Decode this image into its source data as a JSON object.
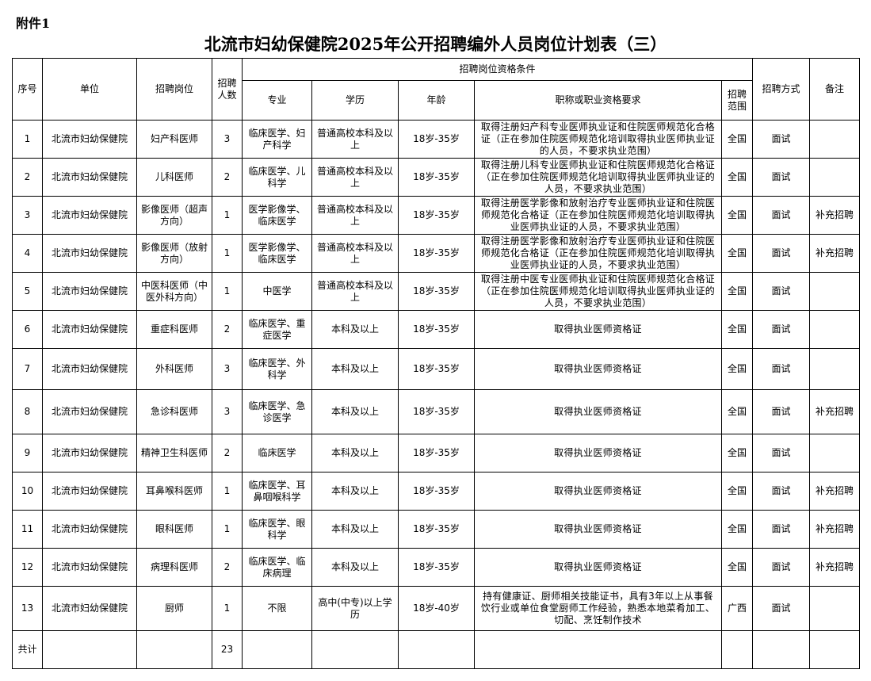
{
  "attachment_label": "附件1",
  "title": "北流市妇幼保健院2025年公开招聘编外人员岗位计划表（三）",
  "headers": {
    "no": "序号",
    "unit": "单位",
    "position": "招聘岗位",
    "count": "招聘人数",
    "qualifications": "招聘岗位资格条件",
    "major": "专业",
    "education": "学历",
    "age": "年龄",
    "requirement": "职称或职业资格要求",
    "scope": "招聘范围",
    "method": "招聘方式",
    "remark": "备注"
  },
  "rows": [
    {
      "no": "1",
      "unit": "北流市妇幼保健院",
      "position": "妇产科医师",
      "count": "3",
      "major": "临床医学、妇产科学",
      "education": "普通高校本科及以上",
      "age": "18岁-35岁",
      "requirement": "取得注册妇产科专业医师执业证和住院医师规范化合格证（正在参加住院医师规范化培训取得执业医师执业证的人员，不要求执业范围）",
      "scope": "全国",
      "method": "面试",
      "remark": ""
    },
    {
      "no": "2",
      "unit": "北流市妇幼保健院",
      "position": "儿科医师",
      "count": "2",
      "major": "临床医学、儿科学",
      "education": "普通高校本科及以上",
      "age": "18岁-35岁",
      "requirement": "取得注册儿科专业医师执业证和住院医师规范化合格证（正在参加住院医师规范化培训取得执业医师执业证的人员，不要求执业范围）",
      "scope": "全国",
      "method": "面试",
      "remark": ""
    },
    {
      "no": "3",
      "unit": "北流市妇幼保健院",
      "position": "影像医师（超声方向）",
      "count": "1",
      "major": "医学影像学、临床医学",
      "education": "普通高校本科及以上",
      "age": "18岁-35岁",
      "requirement": "取得注册医学影像和放射治疗专业医师执业证和住院医师规范化合格证（正在参加住院医师规范化培训取得执业医师执业证的人员，不要求执业范围）",
      "scope": "全国",
      "method": "面试",
      "remark": "补充招聘"
    },
    {
      "no": "4",
      "unit": "北流市妇幼保健院",
      "position": "影像医师（放射方向）",
      "count": "1",
      "major": "医学影像学、临床医学",
      "education": "普通高校本科及以上",
      "age": "18岁-35岁",
      "requirement": "取得注册医学影像和放射治疗专业医师执业证和住院医师规范化合格证（正在参加住院医师规范化培训取得执业医师执业证的人员，不要求执业范围）",
      "scope": "全国",
      "method": "面试",
      "remark": "补充招聘"
    },
    {
      "no": "5",
      "unit": "北流市妇幼保健院",
      "position": "中医科医师（中医外科方向）",
      "count": "1",
      "major": "中医学",
      "education": "普通高校本科及以上",
      "age": "18岁-35岁",
      "requirement": "取得注册中医专业医师执业证和住院医师规范化合格证（正在参加住院医师规范化培训取得执业医师执业证的人员，不要求执业范围）",
      "scope": "全国",
      "method": "面试",
      "remark": ""
    },
    {
      "no": "6",
      "unit": "北流市妇幼保健院",
      "position": "重症科医师",
      "count": "2",
      "major": "临床医学、重症医学",
      "education": "本科及以上",
      "age": "18岁-35岁",
      "requirement": "取得执业医师资格证",
      "scope": "全国",
      "method": "面试",
      "remark": ""
    },
    {
      "no": "7",
      "unit": "北流市妇幼保健院",
      "position": "外科医师",
      "count": "3",
      "major": "临床医学、外科学",
      "education": "本科及以上",
      "age": "18岁-35岁",
      "requirement": "取得执业医师资格证",
      "scope": "全国",
      "method": "面试",
      "remark": ""
    },
    {
      "no": "8",
      "unit": "北流市妇幼保健院",
      "position": "急诊科医师",
      "count": "3",
      "major": "临床医学、急诊医学",
      "education": "本科及以上",
      "age": "18岁-35岁",
      "requirement": "取得执业医师资格证",
      "scope": "全国",
      "method": "面试",
      "remark": "补充招聘"
    },
    {
      "no": "9",
      "unit": "北流市妇幼保健院",
      "position": "精神卫生科医师",
      "count": "2",
      "major": "临床医学",
      "education": "本科及以上",
      "age": "18岁-35岁",
      "requirement": "取得执业医师资格证",
      "scope": "全国",
      "method": "面试",
      "remark": ""
    },
    {
      "no": "10",
      "unit": "北流市妇幼保健院",
      "position": "耳鼻喉科医师",
      "count": "1",
      "major": "临床医学、耳鼻咽喉科学",
      "education": "本科及以上",
      "age": "18岁-35岁",
      "requirement": "取得执业医师资格证",
      "scope": "全国",
      "method": "面试",
      "remark": "补充招聘"
    },
    {
      "no": "11",
      "unit": "北流市妇幼保健院",
      "position": "眼科医师",
      "count": "1",
      "major": "临床医学、眼科学",
      "education": "本科及以上",
      "age": "18岁-35岁",
      "requirement": "取得执业医师资格证",
      "scope": "全国",
      "method": "面试",
      "remark": "补充招聘"
    },
    {
      "no": "12",
      "unit": "北流市妇幼保健院",
      "position": "病理科医师",
      "count": "2",
      "major": "临床医学、临床病理",
      "education": "本科及以上",
      "age": "18岁-35岁",
      "requirement": "取得执业医师资格证",
      "scope": "全国",
      "method": "面试",
      "remark": "补充招聘"
    },
    {
      "no": "13",
      "unit": "北流市妇幼保健院",
      "position": "厨师",
      "count": "1",
      "major": "不限",
      "education": "高中(中专)以上学历",
      "age": "18岁-40岁",
      "requirement": "持有健康证、厨师相关技能证书，具有3年以上从事餐饮行业或单位食堂厨师工作经验，熟悉本地菜肴加工、切配、烹饪制作技术",
      "scope": "广西",
      "method": "面试",
      "remark": ""
    }
  ],
  "total": {
    "label": "共计",
    "count": "23"
  }
}
